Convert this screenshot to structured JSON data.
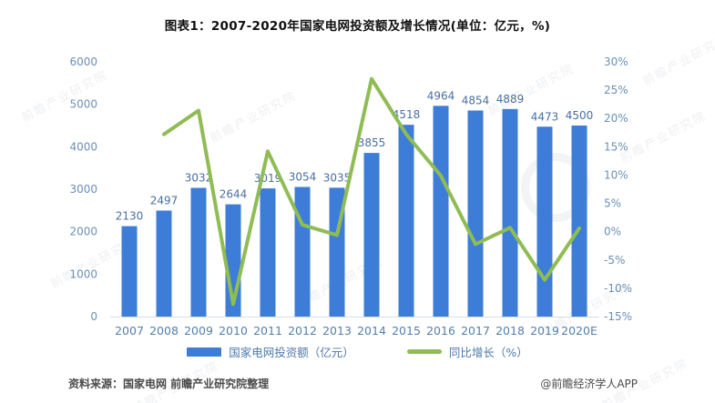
{
  "title": "图表1：2007-2020年国家电网投资额及增长情况(单位：亿元，%)",
  "chart_data": {
    "type": "bar+line combo",
    "categories": [
      "2007",
      "2008",
      "2009",
      "2010",
      "2011",
      "2012",
      "2013",
      "2014",
      "2015",
      "2016",
      "2017",
      "2018",
      "2019",
      "2020E"
    ],
    "series": [
      {
        "name": "国家电网投资额（亿元）",
        "type": "bar",
        "axis": "left",
        "color": "#3d7dd7",
        "values": [
          2130,
          2497,
          3032,
          2644,
          3019,
          3054,
          3035,
          3855,
          4518,
          4964,
          4854,
          4889,
          4473,
          4500
        ]
      },
      {
        "name": "同比增长（%）",
        "type": "line",
        "axis": "right",
        "color": "#8fbc53",
        "values": [
          null,
          17.2,
          21.4,
          -12.8,
          14.2,
          1.2,
          -0.6,
          27.0,
          17.2,
          9.9,
          -2.2,
          0.7,
          -8.5,
          0.6
        ]
      }
    ],
    "left_axis": {
      "min": 0,
      "max": 6000,
      "step": 1000,
      "tick_labels": [
        "0",
        "1000",
        "2000",
        "3000",
        "4000",
        "5000",
        "6000"
      ]
    },
    "right_axis": {
      "min": -15,
      "max": 30,
      "step": 5,
      "unit": "%",
      "tick_labels": [
        "-15%",
        "-10%",
        "-5%",
        "0%",
        "5%",
        "10%",
        "15%",
        "20%",
        "25%",
        "30%"
      ]
    },
    "grid": false,
    "legend_position": "bottom",
    "bar_value_labels_shown": true
  },
  "footer": {
    "source": "资料来源：国家电网 前瞻产业研究院整理",
    "credit": "@前瞻经济学人APP"
  },
  "watermark": {
    "text": "前瞻产业研究院"
  },
  "colors": {
    "bar": "#3d7dd7",
    "line": "#8fbc53",
    "axis_text": "#6b8fb5",
    "bar_label_text": "#4a6f9f",
    "title_text": "#111111",
    "background": "#ffffff"
  }
}
